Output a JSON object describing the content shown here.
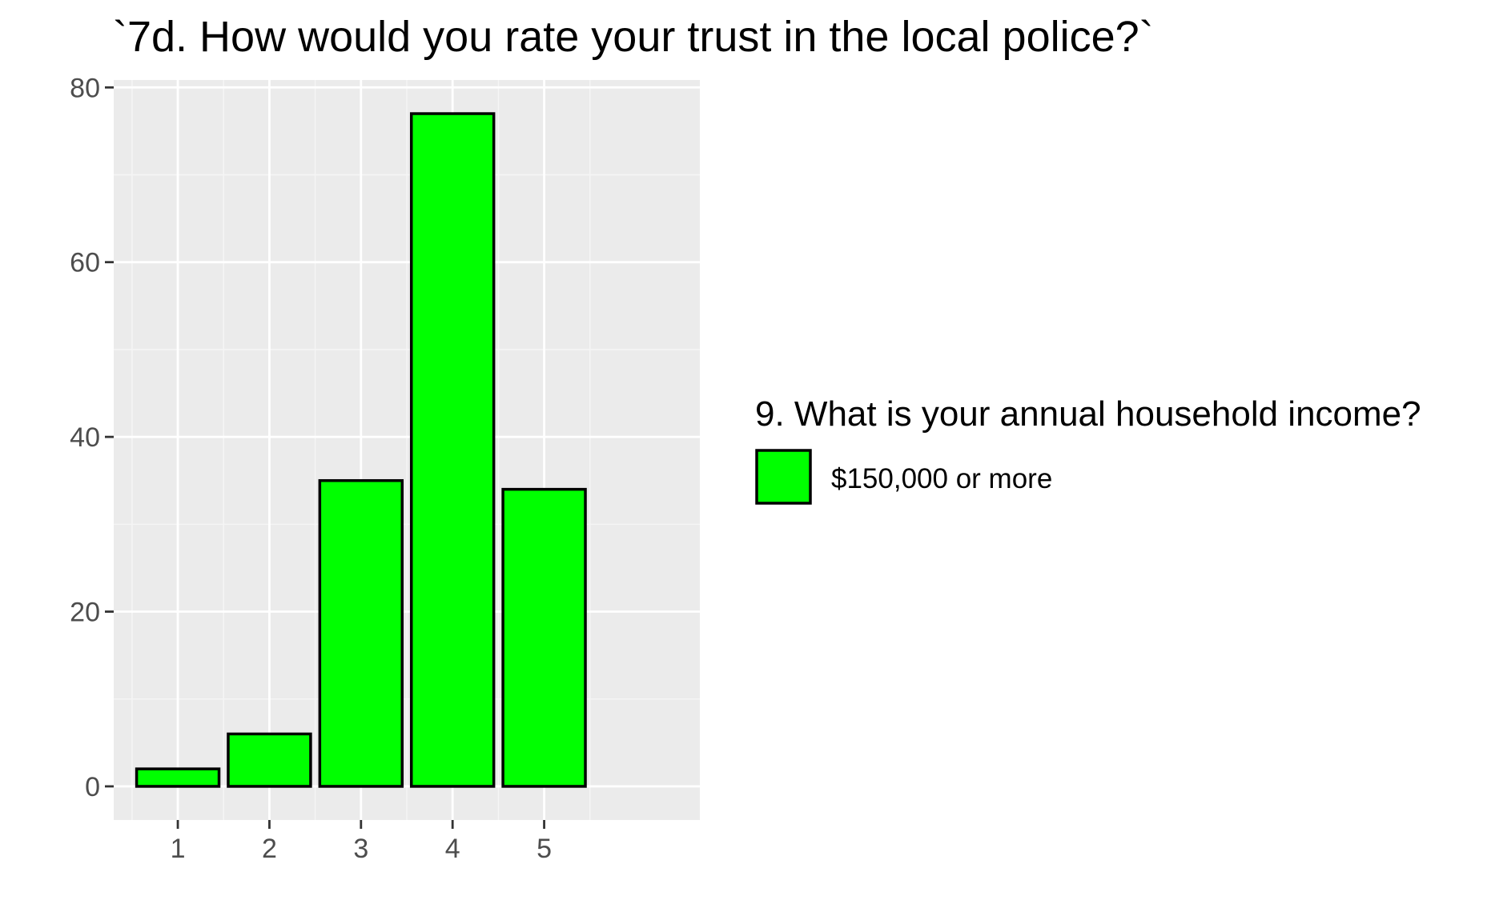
{
  "chart_data": {
    "type": "bar",
    "title": "`7d. How would you rate your trust in the local police?`",
    "xlabel": "",
    "ylabel": "",
    "categories": [
      "1",
      "2",
      "3",
      "4",
      "5"
    ],
    "series": [
      {
        "name": "$150,000 or more",
        "values": [
          2,
          6,
          35,
          77,
          34
        ]
      }
    ],
    "xlim": [
      0.3,
      6.7
    ],
    "ylim": [
      -3.85,
      80.85
    ],
    "y_ticks": [
      0,
      20,
      40,
      60,
      80
    ],
    "y_tick_labels": [
      "0",
      "20",
      "40",
      "60",
      "80"
    ],
    "grid": true,
    "legend": {
      "title": "9. What is your annual household income?",
      "position": "right"
    },
    "colors": {
      "bar_fill": "#00ff00",
      "bar_stroke": "#000000",
      "panel_background": "#ebebeb",
      "grid_major": "#ffffff",
      "grid_minor": "#f5f5f5",
      "tick_color": "#333333",
      "tick_label_color": "#4d4d4d"
    }
  }
}
